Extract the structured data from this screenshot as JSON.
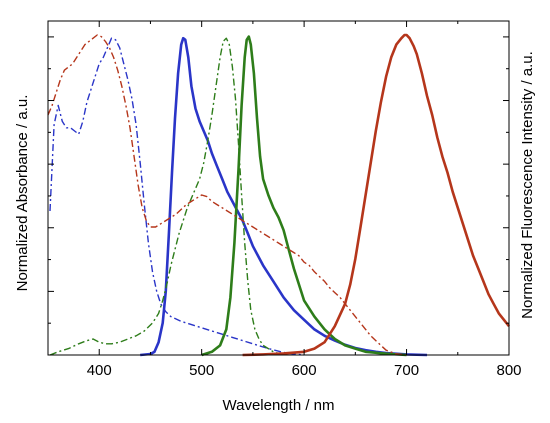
{
  "chart_data": {
    "type": "line",
    "title": "",
    "xlabel": "Wavelength / nm",
    "ylabel_left": "Normalized Absorbance / a.u.",
    "ylabel_right": "Normalized Fluorescence Intensity / a.u.",
    "xlim": [
      350,
      800
    ],
    "ylim": [
      0,
      1
    ],
    "x_ticks": [
      "400",
      "500",
      "600",
      "700",
      "800"
    ],
    "grid": false,
    "legend": "none",
    "series": [
      {
        "kind": "absorbance",
        "style": "dash-dot",
        "color": "#2a35c8",
        "points": [
          [
            352,
            0.45
          ],
          [
            356,
            0.72
          ],
          [
            360,
            0.78
          ],
          [
            364,
            0.73
          ],
          [
            368,
            0.71
          ],
          [
            372,
            0.71
          ],
          [
            376,
            0.7
          ],
          [
            380,
            0.69
          ],
          [
            384,
            0.73
          ],
          [
            388,
            0.79
          ],
          [
            392,
            0.83
          ],
          [
            396,
            0.87
          ],
          [
            400,
            0.91
          ],
          [
            404,
            0.93
          ],
          [
            408,
            0.96
          ],
          [
            412,
            0.99
          ],
          [
            416,
            0.985
          ],
          [
            420,
            0.96
          ],
          [
            424,
            0.91
          ],
          [
            428,
            0.86
          ],
          [
            432,
            0.8
          ],
          [
            436,
            0.72
          ],
          [
            440,
            0.6
          ],
          [
            444,
            0.47
          ],
          [
            448,
            0.35
          ],
          [
            452,
            0.26
          ],
          [
            456,
            0.2
          ],
          [
            460,
            0.16
          ],
          [
            465,
            0.135
          ],
          [
            470,
            0.12
          ],
          [
            480,
            0.105
          ],
          [
            490,
            0.095
          ],
          [
            500,
            0.085
          ],
          [
            510,
            0.075
          ],
          [
            520,
            0.065
          ],
          [
            530,
            0.055
          ],
          [
            540,
            0.045
          ],
          [
            550,
            0.035
          ],
          [
            560,
            0.025
          ],
          [
            570,
            0.016
          ],
          [
            580,
            0.008
          ],
          [
            590,
            0.003
          ],
          [
            600,
            0.0
          ]
        ]
      },
      {
        "kind": "fluorescence",
        "style": "solid",
        "color": "#2a35c8",
        "points": [
          [
            440,
            0.0
          ],
          [
            450,
            0.003
          ],
          [
            454,
            0.01
          ],
          [
            458,
            0.04
          ],
          [
            462,
            0.1
          ],
          [
            465,
            0.2
          ],
          [
            468,
            0.38
          ],
          [
            471,
            0.57
          ],
          [
            474,
            0.74
          ],
          [
            477,
            0.88
          ],
          [
            480,
            0.97
          ],
          [
            482,
            0.99
          ],
          [
            484,
            0.985
          ],
          [
            487,
            0.93
          ],
          [
            490,
            0.84
          ],
          [
            494,
            0.77
          ],
          [
            498,
            0.73
          ],
          [
            502,
            0.7
          ],
          [
            506,
            0.67
          ],
          [
            510,
            0.63
          ],
          [
            515,
            0.59
          ],
          [
            520,
            0.55
          ],
          [
            525,
            0.51
          ],
          [
            530,
            0.48
          ],
          [
            535,
            0.45
          ],
          [
            540,
            0.42
          ],
          [
            545,
            0.38
          ],
          [
            550,
            0.34
          ],
          [
            560,
            0.28
          ],
          [
            570,
            0.23
          ],
          [
            580,
            0.18
          ],
          [
            590,
            0.14
          ],
          [
            600,
            0.11
          ],
          [
            610,
            0.08
          ],
          [
            620,
            0.06
          ],
          [
            630,
            0.045
          ],
          [
            640,
            0.032
          ],
          [
            650,
            0.022
          ],
          [
            660,
            0.015
          ],
          [
            670,
            0.01
          ],
          [
            680,
            0.006
          ],
          [
            700,
            0.002
          ],
          [
            720,
            0.0
          ]
        ]
      },
      {
        "kind": "absorbance",
        "style": "dash-dot",
        "color": "#2e7d1a",
        "points": [
          [
            352,
            0.0
          ],
          [
            360,
            0.01
          ],
          [
            370,
            0.02
          ],
          [
            380,
            0.035
          ],
          [
            388,
            0.045
          ],
          [
            394,
            0.05
          ],
          [
            400,
            0.04
          ],
          [
            406,
            0.035
          ],
          [
            412,
            0.035
          ],
          [
            420,
            0.04
          ],
          [
            428,
            0.05
          ],
          [
            436,
            0.06
          ],
          [
            444,
            0.075
          ],
          [
            452,
            0.1
          ],
          [
            458,
            0.13
          ],
          [
            462,
            0.17
          ],
          [
            466,
            0.22
          ],
          [
            470,
            0.28
          ],
          [
            474,
            0.33
          ],
          [
            478,
            0.38
          ],
          [
            482,
            0.42
          ],
          [
            486,
            0.46
          ],
          [
            490,
            0.49
          ],
          [
            494,
            0.52
          ],
          [
            498,
            0.55
          ],
          [
            502,
            0.6
          ],
          [
            506,
            0.67
          ],
          [
            510,
            0.75
          ],
          [
            514,
            0.84
          ],
          [
            518,
            0.93
          ],
          [
            521,
            0.98
          ],
          [
            524,
            0.99
          ],
          [
            527,
            0.97
          ],
          [
            530,
            0.9
          ],
          [
            533,
            0.8
          ],
          [
            536,
            0.66
          ],
          [
            539,
            0.5
          ],
          [
            542,
            0.35
          ],
          [
            545,
            0.23
          ],
          [
            548,
            0.14
          ],
          [
            552,
            0.08
          ],
          [
            556,
            0.05
          ],
          [
            560,
            0.03
          ],
          [
            565,
            0.02
          ],
          [
            570,
            0.01
          ],
          [
            580,
            0.0
          ]
        ]
      },
      {
        "kind": "fluorescence",
        "style": "solid",
        "color": "#2e7d1a",
        "points": [
          [
            500,
            0.0
          ],
          [
            510,
            0.01
          ],
          [
            518,
            0.03
          ],
          [
            524,
            0.08
          ],
          [
            528,
            0.18
          ],
          [
            532,
            0.35
          ],
          [
            536,
            0.58
          ],
          [
            539,
            0.78
          ],
          [
            542,
            0.93
          ],
          [
            544,
            0.985
          ],
          [
            546,
            0.995
          ],
          [
            548,
            0.97
          ],
          [
            551,
            0.88
          ],
          [
            554,
            0.74
          ],
          [
            557,
            0.62
          ],
          [
            560,
            0.55
          ],
          [
            565,
            0.5
          ],
          [
            570,
            0.46
          ],
          [
            575,
            0.43
          ],
          [
            580,
            0.39
          ],
          [
            585,
            0.33
          ],
          [
            590,
            0.27
          ],
          [
            595,
            0.22
          ],
          [
            600,
            0.17
          ],
          [
            610,
            0.12
          ],
          [
            620,
            0.08
          ],
          [
            630,
            0.05
          ],
          [
            640,
            0.03
          ],
          [
            650,
            0.02
          ],
          [
            660,
            0.01
          ],
          [
            680,
            0.004
          ],
          [
            700,
            0.0
          ]
        ]
      },
      {
        "kind": "absorbance",
        "style": "dash-dot",
        "color": "#b5361b",
        "points": [
          [
            350,
            0.75
          ],
          [
            354,
            0.78
          ],
          [
            358,
            0.82
          ],
          [
            362,
            0.86
          ],
          [
            366,
            0.89
          ],
          [
            370,
            0.9
          ],
          [
            374,
            0.91
          ],
          [
            378,
            0.93
          ],
          [
            382,
            0.95
          ],
          [
            386,
            0.97
          ],
          [
            390,
            0.98
          ],
          [
            394,
            0.99
          ],
          [
            398,
            1.0
          ],
          [
            402,
            0.995
          ],
          [
            406,
            0.98
          ],
          [
            410,
            0.96
          ],
          [
            414,
            0.93
          ],
          [
            418,
            0.89
          ],
          [
            422,
            0.84
          ],
          [
            426,
            0.78
          ],
          [
            430,
            0.71
          ],
          [
            434,
            0.62
          ],
          [
            438,
            0.53
          ],
          [
            442,
            0.46
          ],
          [
            446,
            0.42
          ],
          [
            450,
            0.4
          ],
          [
            455,
            0.4
          ],
          [
            460,
            0.41
          ],
          [
            465,
            0.42
          ],
          [
            470,
            0.43
          ],
          [
            475,
            0.44
          ],
          [
            480,
            0.455
          ],
          [
            485,
            0.47
          ],
          [
            490,
            0.48
          ],
          [
            495,
            0.49
          ],
          [
            500,
            0.5
          ],
          [
            505,
            0.495
          ],
          [
            510,
            0.48
          ],
          [
            515,
            0.47
          ],
          [
            520,
            0.46
          ],
          [
            525,
            0.45
          ],
          [
            530,
            0.44
          ],
          [
            535,
            0.43
          ],
          [
            540,
            0.42
          ],
          [
            545,
            0.41
          ],
          [
            550,
            0.4
          ],
          [
            555,
            0.39
          ],
          [
            560,
            0.38
          ],
          [
            565,
            0.37
          ],
          [
            570,
            0.36
          ],
          [
            575,
            0.35
          ],
          [
            580,
            0.34
          ],
          [
            585,
            0.33
          ],
          [
            590,
            0.32
          ],
          [
            595,
            0.31
          ],
          [
            600,
            0.29
          ],
          [
            605,
            0.28
          ],
          [
            610,
            0.26
          ],
          [
            615,
            0.245
          ],
          [
            620,
            0.23
          ],
          [
            625,
            0.21
          ],
          [
            630,
            0.195
          ],
          [
            635,
            0.18
          ],
          [
            640,
            0.16
          ],
          [
            645,
            0.14
          ],
          [
            650,
            0.12
          ],
          [
            655,
            0.1
          ],
          [
            660,
            0.08
          ],
          [
            665,
            0.06
          ],
          [
            670,
            0.045
          ],
          [
            675,
            0.03
          ],
          [
            680,
            0.015
          ],
          [
            690,
            0.003
          ],
          [
            700,
            0.0
          ]
        ]
      },
      {
        "kind": "fluorescence",
        "style": "solid",
        "color": "#b5361b",
        "points": [
          [
            540,
            0.0
          ],
          [
            560,
            0.002
          ],
          [
            580,
            0.005
          ],
          [
            600,
            0.01
          ],
          [
            610,
            0.02
          ],
          [
            620,
            0.04
          ],
          [
            630,
            0.09
          ],
          [
            640,
            0.16
          ],
          [
            645,
            0.22
          ],
          [
            650,
            0.3
          ],
          [
            655,
            0.4
          ],
          [
            660,
            0.5
          ],
          [
            665,
            0.6
          ],
          [
            670,
            0.7
          ],
          [
            675,
            0.79
          ],
          [
            680,
            0.87
          ],
          [
            685,
            0.93
          ],
          [
            690,
            0.97
          ],
          [
            695,
            0.99
          ],
          [
            698,
            1.0
          ],
          [
            700,
            1.0
          ],
          [
            703,
            0.99
          ],
          [
            707,
            0.965
          ],
          [
            710,
            0.94
          ],
          [
            715,
            0.88
          ],
          [
            720,
            0.81
          ],
          [
            725,
            0.75
          ],
          [
            730,
            0.68
          ],
          [
            735,
            0.62
          ],
          [
            740,
            0.57
          ],
          [
            745,
            0.51
          ],
          [
            750,
            0.46
          ],
          [
            755,
            0.41
          ],
          [
            760,
            0.36
          ],
          [
            765,
            0.31
          ],
          [
            770,
            0.27
          ],
          [
            775,
            0.23
          ],
          [
            780,
            0.19
          ],
          [
            785,
            0.16
          ],
          [
            790,
            0.13
          ],
          [
            795,
            0.11
          ],
          [
            800,
            0.09
          ]
        ]
      }
    ]
  }
}
